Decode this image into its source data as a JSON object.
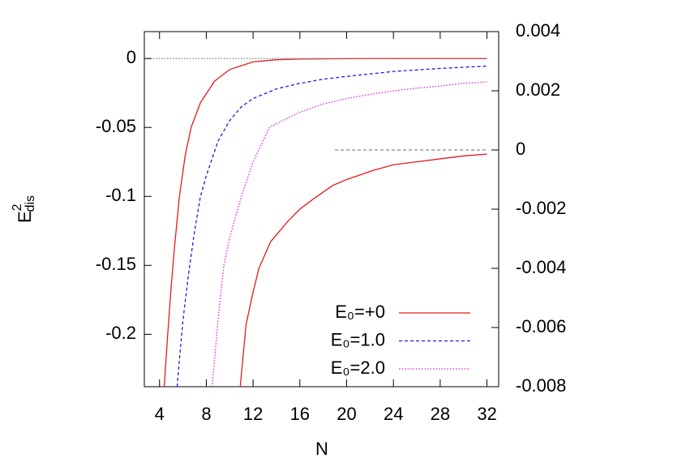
{
  "chart_data": {
    "type": "line",
    "xlabel": "N",
    "ylabel": {
      "base": "E",
      "sup": "2",
      "sub": "dis"
    },
    "xlim": [
      2.7,
      33
    ],
    "ylim": [
      -0.238,
      0.0195
    ],
    "y2lim": [
      -0.008,
      0.004
    ],
    "xticks": [
      4,
      8,
      12,
      16,
      20,
      24,
      28,
      32
    ],
    "yticks": [
      0,
      -0.05,
      -0.1,
      -0.15,
      -0.2
    ],
    "y2ticks": [
      0.004,
      0.002,
      0,
      -0.002,
      -0.004,
      -0.006,
      -0.008
    ],
    "legend": "bottom-right",
    "series": [
      {
        "name": "E₀=+0",
        "color": "#e41a1c",
        "dash": "solid",
        "x": [
          4.4,
          4.7,
          5,
          5.3,
          5.7,
          6.2,
          6.7,
          7.5,
          8.7,
          10,
          12,
          14,
          16,
          20,
          24,
          28,
          32
        ],
        "values": [
          -0.238,
          -0.2,
          -0.165,
          -0.135,
          -0.1,
          -0.07,
          -0.05,
          -0.032,
          -0.0165,
          -0.008,
          -0.0024,
          -0.0009,
          -0.0004,
          -0.0001,
          0,
          0,
          0
        ]
      },
      {
        "name": "E₀=1.0",
        "color": "#1f1fd8",
        "dash": "dashed",
        "x": [
          5.5,
          6,
          6.5,
          7,
          7.5,
          8,
          9,
          10,
          11,
          12,
          14,
          16,
          18,
          20,
          24,
          28,
          32
        ],
        "values": [
          -0.238,
          -0.19,
          -0.155,
          -0.125,
          -0.1,
          -0.085,
          -0.06,
          -0.045,
          -0.035,
          -0.029,
          -0.022,
          -0.018,
          -0.015,
          -0.013,
          -0.0094,
          -0.0072,
          -0.0055
        ]
      },
      {
        "name": "E₀=2.0",
        "color": "#e020e0",
        "dash": "dotted",
        "x": [
          8.5,
          9,
          9.5,
          10,
          11,
          12,
          13.4,
          15,
          16,
          18,
          20,
          22,
          24,
          26,
          28,
          30,
          32
        ],
        "values": [
          -0.238,
          -0.19,
          -0.15,
          -0.13,
          -0.1,
          -0.075,
          -0.05,
          -0.043,
          -0.039,
          -0.033,
          -0.029,
          -0.026,
          -0.0235,
          -0.0215,
          -0.02,
          -0.018,
          -0.017
        ]
      },
      {
        "color": "#e41a1c",
        "dash": "solid",
        "axis": "y2",
        "x": [
          10.9,
          11.4,
          12,
          12.5,
          13.5,
          15,
          16,
          17,
          18.8,
          20,
          22.2,
          24,
          26,
          28,
          30,
          32
        ],
        "values": [
          -0.008,
          -0.0059,
          -0.0048,
          -0.004,
          -0.0031,
          -0.0024,
          -0.002,
          -0.0017,
          -0.0012,
          -0.001,
          -0.0007,
          -0.0005,
          -0.0004,
          -0.0003,
          -0.0002,
          -0.00014
        ]
      },
      {
        "color": "#888888",
        "dash": "dotted",
        "x": [
          2.7,
          32
        ],
        "values": [
          0,
          0
        ]
      },
      {
        "color": "#888888",
        "dash": "dashed",
        "axis": "y2",
        "x": [
          19,
          32
        ],
        "values": [
          0,
          0
        ]
      }
    ]
  }
}
